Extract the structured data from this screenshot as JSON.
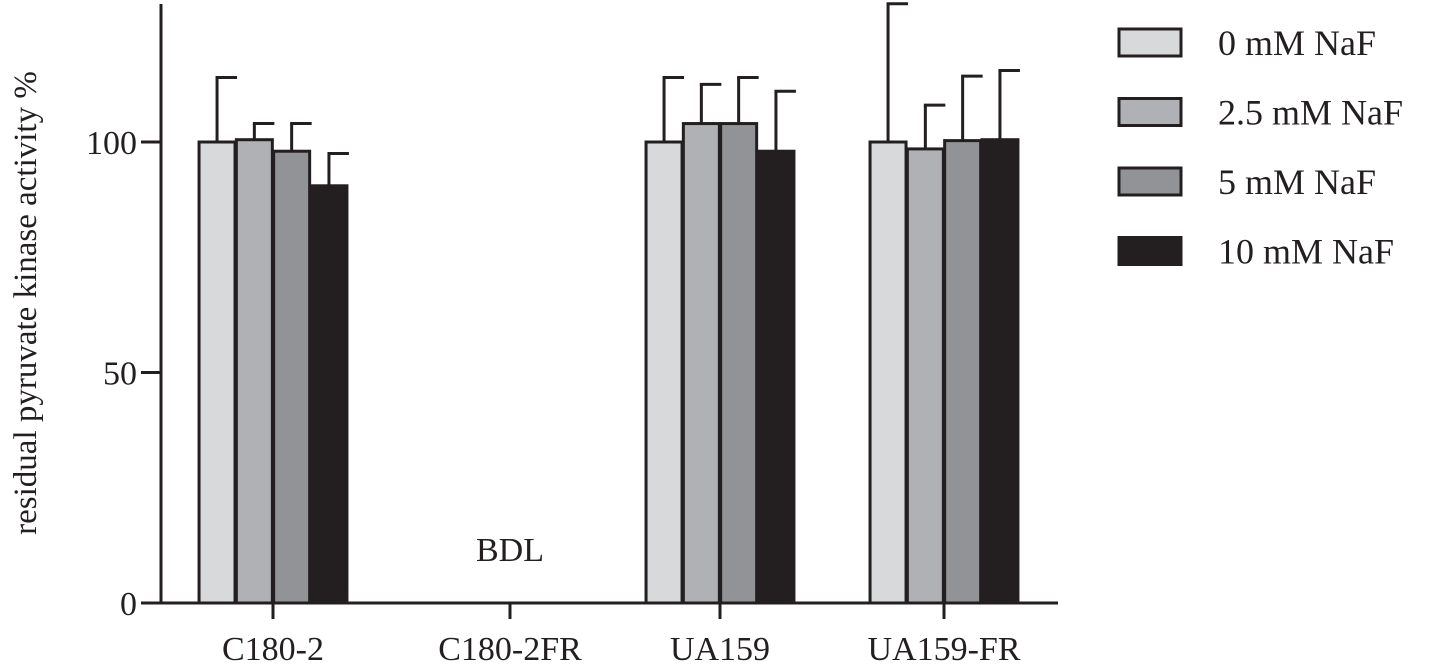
{
  "chart_data": {
    "type": "bar",
    "title": "",
    "xlabel": "",
    "ylabel": "residual pyruvate kinase activity %",
    "ylim": [
      0,
      130
    ],
    "yticks": [
      0,
      50,
      100
    ],
    "grid": false,
    "legend_position": "right",
    "categories": [
      "C180-2",
      "C180-2FR",
      "UA159",
      "UA159-FR"
    ],
    "series": [
      {
        "name": "0 mM NaF",
        "color": "#d8d9da",
        "values": [
          100,
          null,
          100,
          100
        ],
        "errors": [
          14,
          null,
          14,
          30
        ]
      },
      {
        "name": "2.5 mM NaF",
        "color": "#b0b1b4",
        "values": [
          100.5,
          null,
          104,
          98.5
        ],
        "errors": [
          3.5,
          null,
          8.5,
          9.5
        ]
      },
      {
        "name": "5 mM NaF",
        "color": "#929396",
        "values": [
          98,
          null,
          104,
          100.3
        ],
        "errors": [
          6,
          null,
          10,
          14
        ]
      },
      {
        "name": "10 mM NaF",
        "color": "#231f20",
        "values": [
          90.5,
          null,
          98,
          100.5
        ],
        "errors": [
          7,
          null,
          13,
          15
        ]
      }
    ],
    "annotations": [
      {
        "category": "C180-2FR",
        "text": "BDL"
      }
    ]
  }
}
